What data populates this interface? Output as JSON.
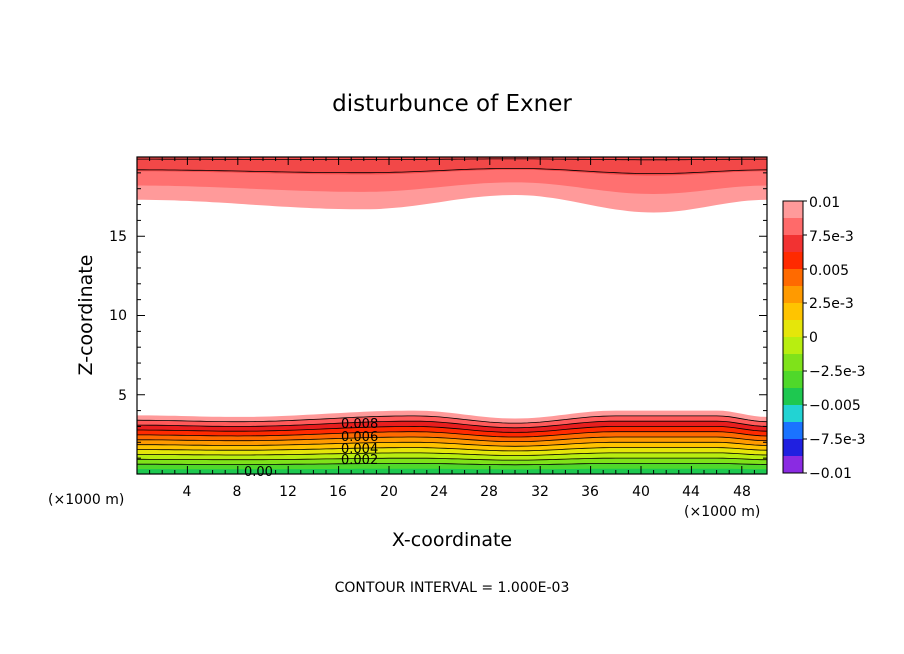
{
  "chart_data": {
    "type": "heatmap",
    "subtype": "filled-contour",
    "title": "disturbunce of Exner",
    "xlabel": "X-coordinate",
    "ylabel": "Z-coordinate",
    "x_unit": "(×1000 m)",
    "x_unit_right": "(×1000 m)",
    "xlim": [
      0,
      50
    ],
    "ylim": [
      0,
      20
    ],
    "x_ticks": [
      "4",
      "8",
      "12",
      "16",
      "20",
      "24",
      "28",
      "32",
      "36",
      "40",
      "44",
      "48"
    ],
    "y_ticks": [
      "5",
      "10",
      "15"
    ],
    "contour_interval_text": "CONTOUR INTERVAL = 1.000E-03",
    "contour_labels": [
      "0.008",
      "0.006",
      "0.004",
      "0.002",
      "0.00"
    ],
    "colorbar": {
      "labels": [
        "0.01",
        "7.5e-3",
        "0.005",
        "2.5e-3",
        "0",
        "−2.5e-3",
        "−0.005",
        "−7.5e-3",
        "−0.01"
      ],
      "range": [
        -0.01,
        0.01
      ]
    },
    "lower_band": {
      "top_z_approx": [
        3.7,
        3.6,
        4.0,
        3.5,
        4.0,
        4.0,
        3.6
      ],
      "x_at": [
        0,
        8,
        22,
        30,
        38,
        46,
        50
      ]
    },
    "upper_band": {
      "bottom_z_approx": [
        17.3,
        16.7,
        17.6,
        16.5,
        17.3
      ],
      "x_at": [
        0,
        18,
        30,
        41,
        50
      ]
    },
    "grid": false,
    "legend": "colorbar-right"
  }
}
